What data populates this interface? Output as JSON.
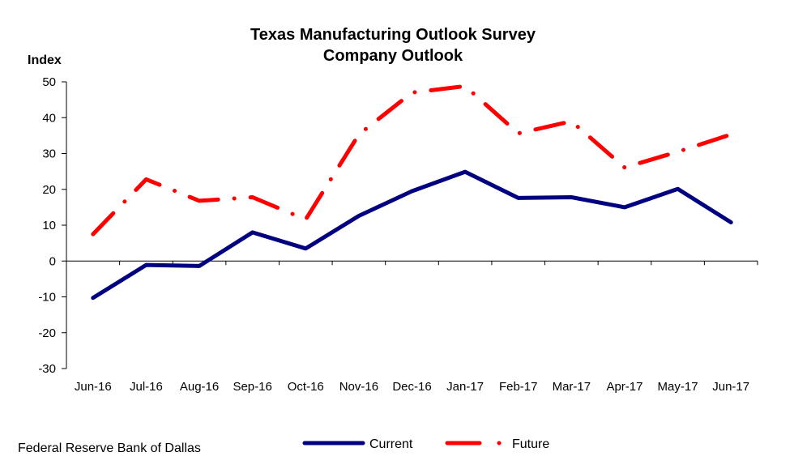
{
  "chart_data": {
    "type": "line",
    "title": [
      "Texas Manufacturing Outlook Survey",
      "Company Outlook"
    ],
    "ylabel": "Index",
    "xlabel": "",
    "ylim": [
      -30,
      50
    ],
    "yticks": [
      50,
      40,
      30,
      20,
      10,
      0,
      -10,
      -20,
      -30
    ],
    "categories": [
      "Jun-16",
      "Jul-16",
      "Aug-16",
      "Sep-16",
      "Oct-16",
      "Nov-16",
      "Dec-16",
      "Jan-17",
      "Feb-17",
      "Mar-17",
      "Apr-17",
      "May-17",
      "Jun-17"
    ],
    "series": [
      {
        "name": "Current",
        "color": "#000080",
        "style": "solid",
        "values": [
          -10.3,
          -1.1,
          -1.4,
          8.0,
          3.5,
          12.6,
          19.5,
          24.9,
          17.6,
          17.8,
          15.0,
          20.1,
          10.8
        ]
      },
      {
        "name": "Future",
        "color": "#ff0000",
        "style": "dash-dot",
        "values": [
          7.5,
          22.8,
          16.8,
          17.8,
          11.6,
          35.3,
          47.0,
          48.8,
          35.6,
          39.0,
          26.1,
          30.5,
          35.3
        ]
      }
    ],
    "legend_position": "bottom",
    "grid": false
  },
  "source": "Federal Reserve Bank of Dallas"
}
